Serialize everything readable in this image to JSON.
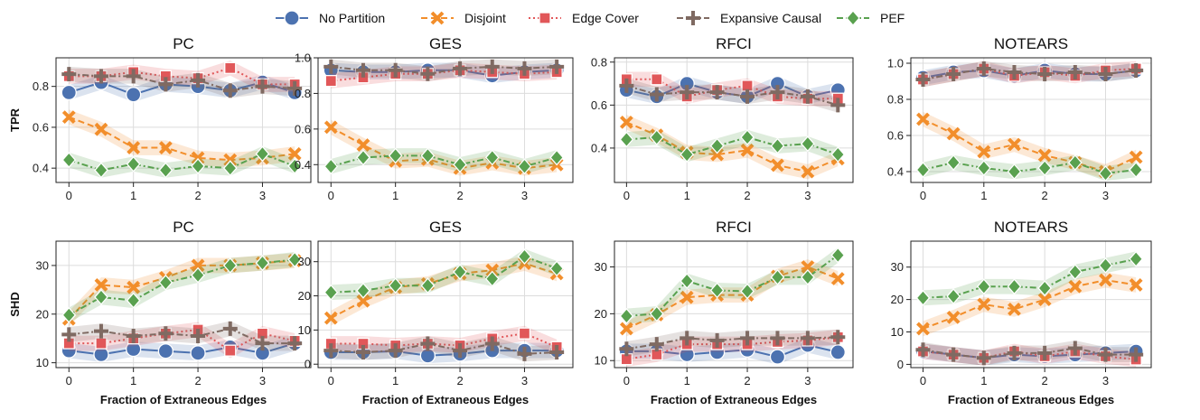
{
  "chart_data": {
    "type": "line",
    "x": [
      0,
      0.5,
      1,
      1.5,
      2,
      2.5,
      3,
      3.5
    ],
    "xticks": [
      0,
      1,
      2,
      3
    ],
    "xlabel": "Fraction of Extraneous Edges",
    "legend": [
      {
        "name": "No Partition",
        "color": "#4c72b0",
        "marker": "circle",
        "dash": "solid"
      },
      {
        "name": "Disjoint",
        "color": "#f28e2b",
        "marker": "x",
        "dash": "dashed"
      },
      {
        "name": "Edge Cover",
        "color": "#e15759",
        "marker": "square",
        "dash": "dotted"
      },
      {
        "name": "Expansive Causal",
        "color": "#7f6a62",
        "marker": "plus",
        "dash": "dashdot"
      },
      {
        "name": "PEF",
        "color": "#59a14f",
        "marker": "diamond",
        "dash": "dashdot"
      }
    ],
    "panels": [
      {
        "title": "PC",
        "ylabel": "TPR",
        "ylim": [
          0.33,
          0.94
        ],
        "yticks": [
          "0.4",
          "0.6",
          "0.8"
        ],
        "ytick_values": [
          0.4,
          0.6,
          0.8
        ],
        "series": [
          {
            "name": "No Partition",
            "values": [
              0.77,
              0.82,
              0.76,
              0.81,
              0.8,
              0.78,
              0.82,
              0.77
            ]
          },
          {
            "name": "Disjoint",
            "values": [
              0.65,
              0.59,
              0.5,
              0.5,
              0.45,
              0.44,
              0.45,
              0.47
            ]
          },
          {
            "name": "Edge Cover",
            "values": [
              0.85,
              0.85,
              0.87,
              0.85,
              0.84,
              0.89,
              0.81,
              0.81
            ]
          },
          {
            "name": "Expansive Causal",
            "values": [
              0.86,
              0.85,
              0.85,
              0.81,
              0.83,
              0.78,
              0.8,
              0.79
            ]
          },
          {
            "name": "PEF",
            "values": [
              0.44,
              0.39,
              0.42,
              0.39,
              0.41,
              0.4,
              0.47,
              0.41
            ]
          }
        ]
      },
      {
        "title": "GES",
        "ylabel": "",
        "ylim": [
          0.3,
          1.0
        ],
        "yticks": [
          "0.4",
          "0.6",
          "0.8",
          "1.0"
        ],
        "ytick_values": [
          0.4,
          0.6,
          0.8,
          1.0
        ],
        "series": [
          {
            "name": "No Partition",
            "values": [
              0.93,
              0.92,
              0.92,
              0.93,
              0.93,
              0.9,
              0.92,
              0.93
            ]
          },
          {
            "name": "Disjoint",
            "values": [
              0.61,
              0.51,
              0.42,
              0.43,
              0.38,
              0.41,
              0.38,
              0.4
            ]
          },
          {
            "name": "Edge Cover",
            "values": [
              0.87,
              0.89,
              0.91,
              0.91,
              0.93,
              0.92,
              0.91,
              0.92
            ]
          },
          {
            "name": "Expansive Causal",
            "values": [
              0.95,
              0.93,
              0.93,
              0.91,
              0.94,
              0.95,
              0.94,
              0.95
            ]
          },
          {
            "name": "PEF",
            "values": [
              0.39,
              0.44,
              0.45,
              0.45,
              0.4,
              0.44,
              0.39,
              0.44
            ]
          }
        ]
      },
      {
        "title": "RFCI",
        "ylabel": "",
        "ylim": [
          0.24,
          0.82
        ],
        "yticks": [
          "0.4",
          "0.6",
          "0.8"
        ],
        "ytick_values": [
          0.4,
          0.6,
          0.8
        ],
        "series": [
          {
            "name": "No Partition",
            "values": [
              0.67,
              0.64,
              0.7,
              0.66,
              0.64,
              0.7,
              0.64,
              0.67
            ]
          },
          {
            "name": "Disjoint",
            "values": [
              0.52,
              0.46,
              0.38,
              0.37,
              0.39,
              0.32,
              0.29,
              0.35
            ]
          },
          {
            "name": "Edge Cover",
            "values": [
              0.72,
              0.72,
              0.64,
              0.67,
              0.69,
              0.64,
              0.63,
              0.63
            ]
          },
          {
            "name": "Expansive Causal",
            "values": [
              0.69,
              0.65,
              0.66,
              0.66,
              0.64,
              0.66,
              0.64,
              0.6
            ]
          },
          {
            "name": "PEF",
            "values": [
              0.44,
              0.45,
              0.37,
              0.41,
              0.45,
              0.41,
              0.42,
              0.37
            ]
          }
        ]
      },
      {
        "title": "NOTEARS",
        "ylabel": "",
        "ylim": [
          0.34,
          1.03
        ],
        "yticks": [
          "0.4",
          "0.6",
          "0.8",
          "1.0"
        ],
        "ytick_values": [
          0.4,
          0.6,
          0.8,
          1.0
        ],
        "series": [
          {
            "name": "No Partition",
            "values": [
              0.92,
              0.95,
              0.96,
              0.93,
              0.96,
              0.94,
              0.94,
              0.96
            ]
          },
          {
            "name": "Disjoint",
            "values": [
              0.69,
              0.61,
              0.51,
              0.55,
              0.49,
              0.45,
              0.4,
              0.48
            ]
          },
          {
            "name": "Edge Cover",
            "values": [
              0.91,
              0.94,
              0.97,
              0.93,
              0.95,
              0.93,
              0.96,
              0.97
            ]
          },
          {
            "name": "Expansive Causal",
            "values": [
              0.91,
              0.94,
              0.97,
              0.95,
              0.94,
              0.95,
              0.94,
              0.96
            ]
          },
          {
            "name": "PEF",
            "values": [
              0.41,
              0.45,
              0.42,
              0.4,
              0.42,
              0.45,
              0.39,
              0.41
            ]
          }
        ]
      },
      {
        "title": "PC",
        "ylabel": "SHD",
        "ylim": [
          9,
          35
        ],
        "yticks": [
          "10",
          "20",
          "30"
        ],
        "ytick_values": [
          10,
          20,
          30
        ],
        "series": [
          {
            "name": "No Partition",
            "values": [
              12.5,
              11.7,
              12.8,
              12.4,
              12.0,
              13.2,
              12.0,
              14.0
            ]
          },
          {
            "name": "Disjoint",
            "values": [
              19.0,
              26.0,
              25.5,
              27.5,
              30.0,
              30.0,
              30.5,
              31.0
            ]
          },
          {
            "name": "Edge Cover",
            "values": [
              14.0,
              14.0,
              15.0,
              16.0,
              16.8,
              12.5,
              16.0,
              14.5
            ]
          },
          {
            "name": "Expansive Causal",
            "values": [
              15.8,
              16.5,
              15.5,
              16.0,
              15.5,
              17.0,
              14.0,
              14.0
            ]
          },
          {
            "name": "PEF",
            "values": [
              19.8,
              23.5,
              22.8,
              26.5,
              28.0,
              30.0,
              30.5,
              31.2
            ]
          }
        ]
      },
      {
        "title": "GES",
        "ylabel": "",
        "ylim": [
          -1,
          36
        ],
        "yticks": [
          "0",
          "10",
          "20",
          "30"
        ],
        "ytick_values": [
          0,
          10,
          20,
          30
        ],
        "series": [
          {
            "name": "No Partition",
            "values": [
              3.5,
              3.5,
              3.8,
              2.5,
              3.0,
              4.0,
              4.0,
              4.0
            ]
          },
          {
            "name": "Disjoint",
            "values": [
              13.5,
              18.5,
              22.5,
              23.5,
              26.5,
              27.5,
              29.5,
              26.5
            ]
          },
          {
            "name": "Edge Cover",
            "values": [
              6.0,
              6.0,
              5.5,
              6.0,
              5.5,
              7.5,
              9.0,
              5.0
            ]
          },
          {
            "name": "Expansive Causal",
            "values": [
              4.0,
              3.5,
              4.0,
              6.0,
              4.0,
              6.0,
              3.0,
              3.5
            ]
          },
          {
            "name": "PEF",
            "values": [
              21.0,
              21.5,
              23.0,
              23.0,
              27.0,
              25.0,
              31.5,
              28.0
            ]
          }
        ]
      },
      {
        "title": "RFCI",
        "ylabel": "",
        "ylim": [
          8.5,
          35.5
        ],
        "yticks": [
          "10",
          "20",
          "30"
        ],
        "ytick_values": [
          10,
          20,
          30
        ],
        "series": [
          {
            "name": "No Partition",
            "values": [
              12.0,
              12.0,
              11.3,
              11.8,
              12.3,
              10.8,
              13.3,
              11.8
            ]
          },
          {
            "name": "Disjoint",
            "values": [
              16.8,
              19.8,
              23.5,
              24.0,
              24.0,
              28.0,
              30.0,
              27.5
            ]
          },
          {
            "name": "Edge Cover",
            "values": [
              10.3,
              11.3,
              13.5,
              13.5,
              13.5,
              14.0,
              14.3,
              15.0
            ]
          },
          {
            "name": "Expansive Causal",
            "values": [
              12.5,
              13.5,
              14.8,
              14.3,
              14.8,
              14.8,
              14.8,
              15.0
            ]
          },
          {
            "name": "PEF",
            "values": [
              19.5,
              20.0,
              27.0,
              25.0,
              24.8,
              27.8,
              27.8,
              32.5
            ]
          }
        ]
      },
      {
        "title": "NOTEARS",
        "ylabel": "",
        "ylim": [
          -1,
          38
        ],
        "yticks": [
          "0",
          "10",
          "20",
          "30"
        ],
        "ytick_values": [
          0,
          10,
          20,
          30
        ],
        "series": [
          {
            "name": "No Partition",
            "values": [
              4.0,
              3.0,
              2.0,
              3.0,
              2.5,
              3.0,
              3.5,
              4.0
            ]
          },
          {
            "name": "Disjoint",
            "values": [
              11.0,
              14.5,
              18.5,
              17.0,
              20.0,
              24.0,
              26.0,
              24.5
            ]
          },
          {
            "name": "Edge Cover",
            "values": [
              4.0,
              3.0,
              2.0,
              4.0,
              2.5,
              4.0,
              2.5,
              1.5
            ]
          },
          {
            "name": "Expansive Causal",
            "values": [
              4.5,
              3.0,
              2.0,
              3.5,
              3.5,
              5.0,
              3.0,
              3.0
            ]
          },
          {
            "name": "PEF",
            "values": [
              20.5,
              21.0,
              24.0,
              24.0,
              23.5,
              28.5,
              30.5,
              32.5
            ]
          }
        ]
      }
    ]
  }
}
